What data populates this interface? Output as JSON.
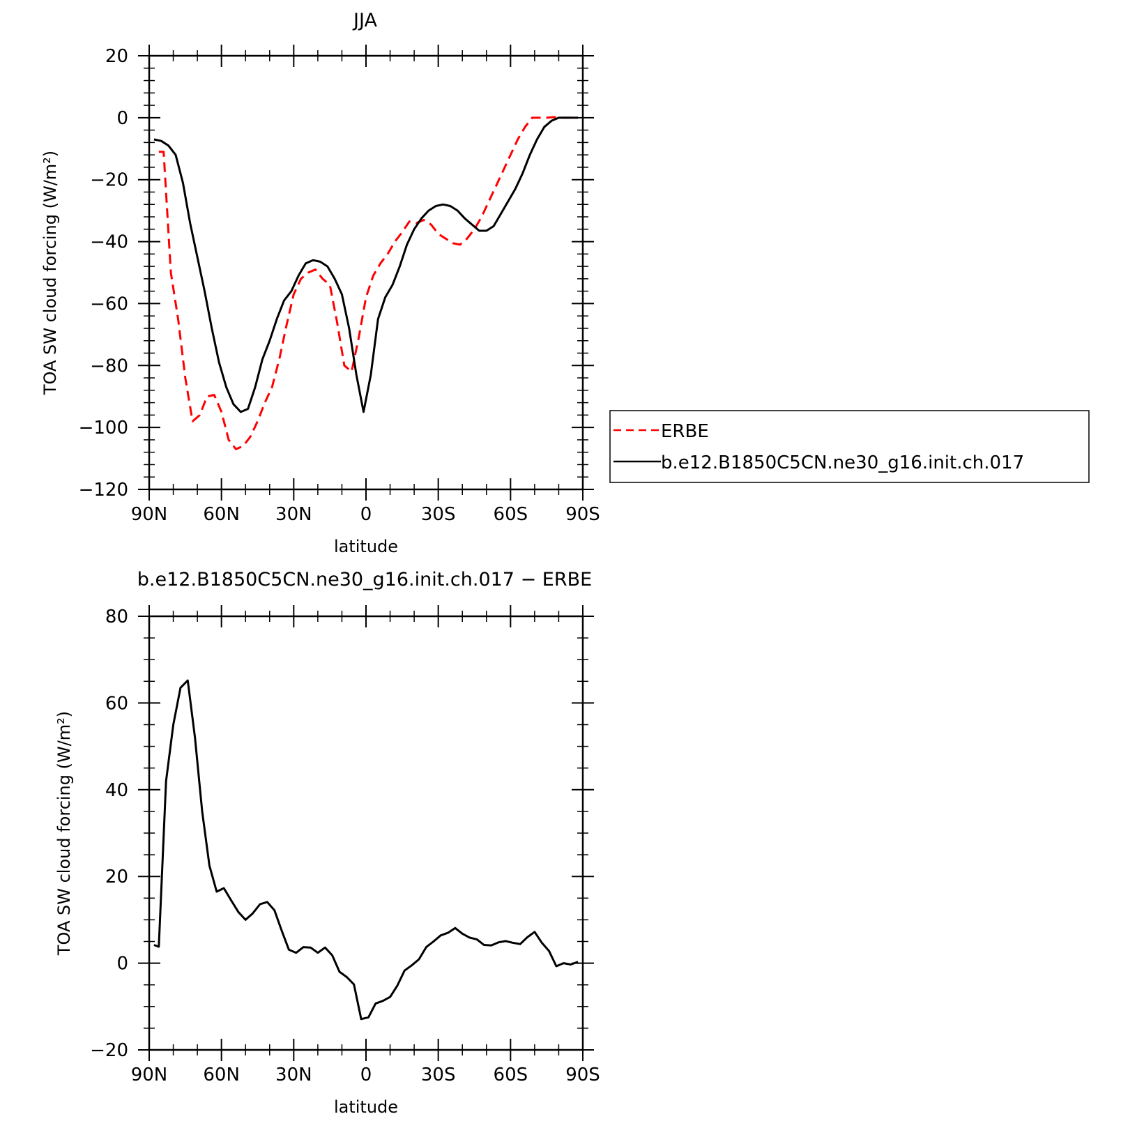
{
  "chart_data": [
    {
      "type": "line",
      "title": "JJA",
      "xlabel": "latitude",
      "ylabel": "TOA SW cloud forcing (W/m²)",
      "xlim": [
        90,
        -90
      ],
      "ylim": [
        -120,
        20
      ],
      "x_ticks": [
        90,
        60,
        30,
        0,
        -30,
        -60,
        -90
      ],
      "x_tick_labels": [
        "90N",
        "60N",
        "30N",
        "0",
        "30S",
        "60S",
        "90S"
      ],
      "y_ticks": [
        20,
        0,
        -20,
        -40,
        -60,
        -80,
        -100,
        -120
      ],
      "y_tick_labels": [
        "20",
        "0",
        "−20",
        "−40",
        "−60",
        "−80",
        "−100",
        "−120"
      ],
      "legend_position": "right",
      "series": [
        {
          "name": "ERBE",
          "color": "#ff0000",
          "style": "dashed",
          "x": [
            86,
            84,
            81,
            78,
            75,
            72,
            69,
            66,
            63,
            60,
            57,
            54,
            51,
            48,
            45,
            42,
            39,
            36,
            33,
            30,
            27,
            24,
            21,
            18,
            15,
            12,
            9,
            6,
            3,
            0,
            -3,
            -6,
            -9,
            -12,
            -15,
            -18,
            -21,
            -24,
            -27,
            -30,
            -33,
            -36,
            -39,
            -42,
            -45,
            -48,
            -51,
            -54,
            -57,
            -60,
            -63,
            -66,
            -69,
            -72,
            -75,
            -78,
            -81,
            -84,
            -87
          ],
          "y": [
            -11,
            -11,
            -50,
            -65,
            -84,
            -98,
            -96,
            -90,
            -89.5,
            -95,
            -104,
            -107,
            -106,
            -103,
            -98,
            -92,
            -87,
            -78,
            -67,
            -57,
            -52,
            -50,
            -49,
            -52,
            -54,
            -66,
            -80,
            -82,
            -71,
            -58,
            -51,
            -47,
            -44,
            -40,
            -37,
            -33.5,
            -34,
            -33,
            -34.5,
            -37.5,
            -39,
            -40.5,
            -41,
            -39,
            -36,
            -32,
            -27,
            -22,
            -17,
            -12,
            -7,
            -3,
            0,
            0,
            0,
            0.2,
            0,
            0,
            0
          ]
        },
        {
          "name": "b.e12.B1850C5CN.ne30_g16.init.ch.017",
          "color": "#000000",
          "style": "solid",
          "x": [
            88,
            85,
            82,
            79,
            76,
            73,
            70,
            67,
            64,
            61,
            58,
            55,
            52,
            49,
            46,
            43,
            40,
            37,
            34,
            31,
            28,
            25,
            22,
            19,
            16,
            13,
            10,
            7,
            4,
            1,
            -2,
            -5,
            -8,
            -11,
            -14,
            -17,
            -20,
            -23,
            -26,
            -29,
            -32,
            -35,
            -38,
            -41,
            -44,
            -47,
            -50,
            -53,
            -56,
            -59,
            -62,
            -65,
            -68,
            -71,
            -74,
            -77,
            -80,
            -83,
            -86,
            -88
          ],
          "y": [
            -7,
            -7.5,
            -9,
            -12,
            -21,
            -34,
            -45,
            -56,
            -68,
            -79,
            -87,
            -92.5,
            -95,
            -94,
            -87,
            -78,
            -72,
            -65,
            -59,
            -56,
            -51,
            -47,
            -46,
            -46.5,
            -48,
            -52,
            -57,
            -68,
            -83,
            -95,
            -83,
            -65,
            -58,
            -54,
            -48,
            -41,
            -36,
            -32.5,
            -30,
            -28.5,
            -28,
            -28.5,
            -30,
            -32.5,
            -34.5,
            -36.5,
            -36.5,
            -35,
            -31,
            -27,
            -23,
            -18,
            -12,
            -7,
            -3,
            -1,
            0,
            0,
            0,
            0
          ]
        }
      ]
    },
    {
      "type": "line",
      "title": "b.e12.B1850C5CN.ne30_g16.init.ch.017 − ERBE",
      "xlabel": "latitude",
      "ylabel": "TOA SW cloud forcing (W/m²)",
      "xlim": [
        90,
        -90
      ],
      "ylim": [
        -20,
        80
      ],
      "x_ticks": [
        90,
        60,
        30,
        0,
        -30,
        -60,
        -90
      ],
      "x_tick_labels": [
        "90N",
        "60N",
        "30N",
        "0",
        "30S",
        "60S",
        "90S"
      ],
      "y_ticks": [
        80,
        60,
        40,
        20,
        0,
        -20
      ],
      "y_tick_labels": [
        "80",
        "60",
        "40",
        "20",
        "0",
        "−20"
      ],
      "series": [
        {
          "color": "#000000",
          "style": "solid",
          "x": [
            88,
            86,
            83,
            80,
            77,
            74,
            71,
            68,
            65,
            62,
            59,
            56,
            53,
            50,
            47,
            44,
            41,
            38,
            35,
            32,
            29,
            26,
            23,
            20,
            17,
            14,
            11,
            8,
            5,
            2,
            -1,
            -4,
            -7,
            -10,
            -13,
            -16,
            -19,
            -22,
            -25,
            -28,
            -31,
            -34,
            -37,
            -40,
            -43,
            -46,
            -49,
            -52,
            -55,
            -58,
            -61,
            -64,
            -67,
            -70,
            -73,
            -76,
            -79,
            -82,
            -85,
            -88
          ],
          "y": [
            4.2,
            3.8,
            42,
            55,
            63.5,
            65.2,
            52,
            35,
            22.5,
            16.5,
            17.3,
            14.5,
            11.8,
            10,
            11.5,
            13.6,
            14.1,
            12.2,
            7.5,
            3.1,
            2.4,
            3.7,
            3.6,
            2.4,
            3.6,
            1.8,
            -2,
            -3.2,
            -4.9,
            -12.9,
            -12.5,
            -9.3,
            -8.7,
            -7.8,
            -5.2,
            -1.7,
            -0.5,
            0.9,
            3.7,
            5,
            6.4,
            7,
            8.1,
            6.8,
            5.9,
            5.5,
            4.2,
            4.1,
            4.8,
            5.1,
            4.7,
            4.4,
            6,
            7.2,
            4.7,
            2.8,
            -0.7,
            0,
            -0.3,
            0.3
          ]
        }
      ]
    }
  ]
}
